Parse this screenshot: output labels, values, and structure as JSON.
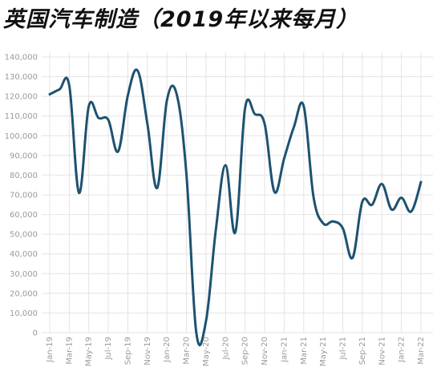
{
  "chart_data": {
    "type": "line",
    "title": "英国汽车制造（2019年以来每月）",
    "xlabel": "",
    "ylabel": "",
    "ylim": [
      0,
      140000
    ],
    "yticks": [
      0,
      10000,
      20000,
      30000,
      40000,
      50000,
      60000,
      70000,
      80000,
      90000,
      100000,
      110000,
      120000,
      130000,
      140000
    ],
    "ytick_labels": [
      "0",
      "10,000",
      "20,000",
      "30,000",
      "40,000",
      "50,000",
      "60,000",
      "70,000",
      "80,000",
      "90,000",
      "100,000",
      "110,000",
      "120,000",
      "130,000",
      "140,000"
    ],
    "xtick_labels": [
      "Jan-19",
      "Mar-19",
      "May-19",
      "Jul-19",
      "Sep-19",
      "Nov-19",
      "Jan-20",
      "Mar-20",
      "May-20",
      "Jul-20",
      "Sep-20",
      "Nov-20",
      "Jan-21",
      "Mar-21",
      "May-21",
      "Jul-21",
      "Sep-21",
      "Nov-21",
      "Jan-22",
      "Mar-22"
    ],
    "grid": true,
    "legend": "none",
    "line_color": "#1d5271",
    "categories": [
      "Jan-19",
      "Feb-19",
      "Mar-19",
      "Apr-19",
      "May-19",
      "Jun-19",
      "Jul-19",
      "Aug-19",
      "Sep-19",
      "Oct-19",
      "Nov-19",
      "Dec-19",
      "Jan-20",
      "Feb-20",
      "Mar-20",
      "Apr-20",
      "May-20",
      "Jun-20",
      "Jul-20",
      "Aug-20",
      "Sep-20",
      "Oct-20",
      "Nov-20",
      "Dec-20",
      "Jan-21",
      "Feb-21",
      "Mar-21",
      "Apr-21",
      "May-21",
      "Jun-21",
      "Jul-21",
      "Aug-21",
      "Sep-21",
      "Oct-21",
      "Nov-21",
      "Dec-21",
      "Jan-22",
      "Feb-22",
      "Mar-22"
    ],
    "values": [
      121000,
      123500,
      125500,
      71000,
      115000,
      109000,
      108000,
      92000,
      120500,
      133000,
      106000,
      73500,
      118000,
      121000,
      80000,
      200,
      6000,
      52000,
      85000,
      51000,
      114000,
      111000,
      106000,
      71500,
      88500,
      104500,
      115000,
      69000,
      55500,
      56500,
      53000,
      38000,
      66500,
      65000,
      75500,
      62500,
      68500,
      61500,
      76500
    ]
  }
}
